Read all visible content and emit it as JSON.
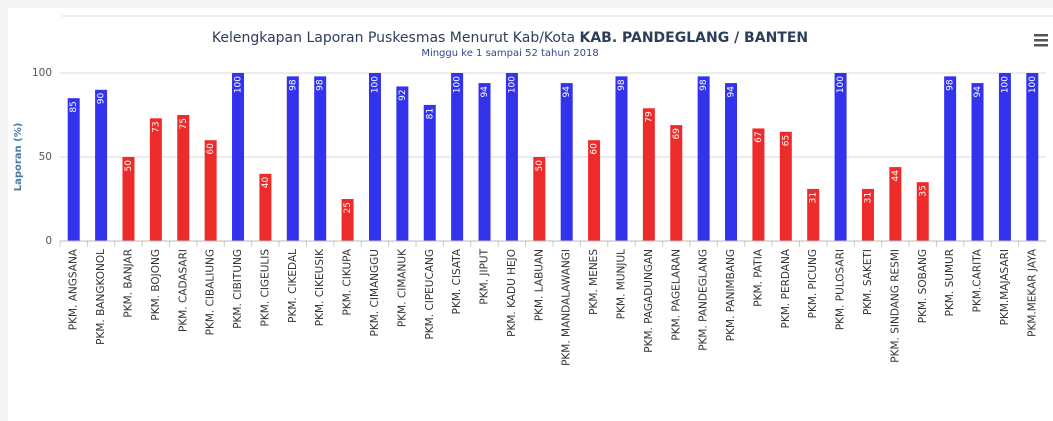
{
  "chart_data": {
    "type": "bar",
    "title": "Kelengkapan Laporan Puskesmas Menurut Kab/Kota ",
    "title_bold": "KAB. PANDEGLANG / BANTEN",
    "subtitle": "Minggu ke 1 sampai 52 tahun 2018",
    "y_label": "Laporan (%)",
    "categories": [
      "PKM. ANGSANA",
      "PKM. BANGKONOL",
      "PKM. BANJAR",
      "PKM. BOJONG",
      "PKM. CADASARI",
      "PKM. CIBALIUNG",
      "PKM. CIBITUNG",
      "PKM. CIGEULIS",
      "PKM. CIKEDAL",
      "PKM. CIKEUSIK",
      "PKM. CIKUPA",
      "PKM. CIMANGGU",
      "PKM. CIMANUK",
      "PKM. CIPEUCANG",
      "PKM. CISATA",
      "PKM. JIPUT",
      "PKM. KADU HEJO",
      "PKM. LABUAN",
      "PKM. MANDALAWANGI",
      "PKM. MENES",
      "PKM. MUNJUL",
      "PKM. PAGADUNGAN",
      "PKM. PAGELARAN",
      "PKM. PANDEGLANG",
      "PKM. PANIMBANG",
      "PKM. PATIA",
      "PKM. PERDANA",
      "PKM. PICUNG",
      "PKM. PULOSARI",
      "PKM. SAKETI",
      "PKM. SINDANG RESMI",
      "PKM. SOBANG",
      "PKM. SUMUR",
      "PKM.CARITA",
      "PKM.MAJASARI",
      "PKM.MEKAR JAYA"
    ],
    "values": [
      85,
      90,
      50,
      73,
      75,
      60,
      100,
      40,
      98,
      98,
      25,
      100,
      92,
      81,
      100,
      94,
      100,
      50,
      94,
      60,
      98,
      79,
      69,
      98,
      94,
      67,
      65,
      31,
      100,
      31,
      44,
      35,
      98,
      94,
      100,
      100
    ],
    "colors": [
      "#3333ee",
      "#3333ee",
      "#ee2b2b",
      "#ee2b2b",
      "#ee2b2b",
      "#ee2b2b",
      "#3333ee",
      "#ee2b2b",
      "#3333ee",
      "#3333ee",
      "#ee2b2b",
      "#3333ee",
      "#3333ee",
      "#3333ee",
      "#3333ee",
      "#3333ee",
      "#3333ee",
      "#ee2b2b",
      "#3333ee",
      "#ee2b2b",
      "#3333ee",
      "#ee2b2b",
      "#ee2b2b",
      "#3333ee",
      "#3333ee",
      "#ee2b2b",
      "#ee2b2b",
      "#ee2b2b",
      "#3333ee",
      "#ee2b2b",
      "#ee2b2b",
      "#ee2b2b",
      "#3333ee",
      "#3333ee",
      "#3333ee",
      "#3333ee"
    ],
    "ylim": [
      0,
      100
    ],
    "yticks": [
      0,
      50,
      100
    ],
    "grid": true
  }
}
